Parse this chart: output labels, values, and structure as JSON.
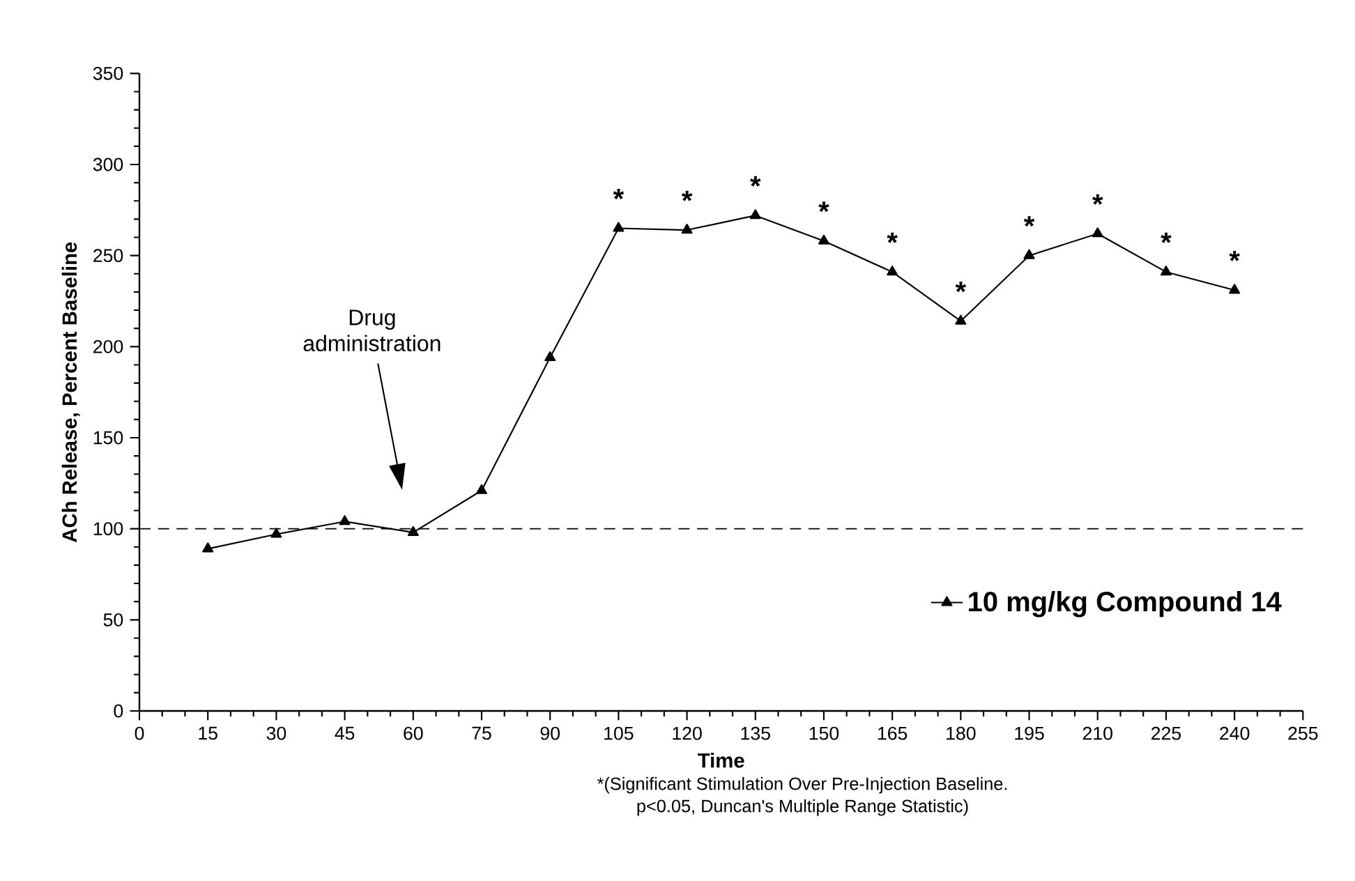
{
  "chart_data": {
    "type": "line",
    "xlabel": "Time",
    "ylabel": "ACh Release, Percent Baseline",
    "x": [
      15,
      30,
      45,
      60,
      75,
      90,
      105,
      120,
      135,
      150,
      165,
      180,
      195,
      210,
      225,
      240
    ],
    "series": [
      {
        "name": "10 mg/kg Compound 14",
        "color": "#000000",
        "values": [
          89,
          97,
          104,
          98,
          121,
          194,
          265,
          264,
          272,
          258,
          241,
          214,
          250,
          262,
          241,
          231
        ]
      }
    ],
    "xlim": [
      0,
      255
    ],
    "xticks": [
      0,
      15,
      30,
      45,
      60,
      75,
      90,
      105,
      120,
      135,
      150,
      165,
      180,
      195,
      210,
      225,
      240,
      255
    ],
    "ylim": [
      0,
      350
    ],
    "yticks": [
      0,
      50,
      100,
      150,
      200,
      250,
      300,
      350
    ],
    "ref_lines": [
      {
        "axis": "y",
        "value": 100,
        "line_style": "dashed",
        "color": "#000000"
      }
    ],
    "annotations": [
      "Drug administration",
      {
        "text": "*",
        "x": 105,
        "y": 265
      },
      {
        "text": "*",
        "x": 120,
        "y": 264
      },
      {
        "text": "*",
        "x": 135,
        "y": 272
      },
      {
        "text": "*",
        "x": 150,
        "y": 258
      },
      {
        "text": "*",
        "x": 165,
        "y": 241
      },
      {
        "text": "*",
        "x": 180,
        "y": 214
      },
      {
        "text": "*",
        "x": 195,
        "y": 250
      },
      {
        "text": "*",
        "x": 210,
        "y": 262
      },
      {
        "text": "*",
        "x": 225,
        "y": 241
      },
      {
        "text": "*",
        "x": 240,
        "y": 231
      },
      "*(Significant Stimulation Over Pre-Injection Baseline.",
      "p<0.05, Duncan's Multiple Range Statistic)"
    ],
    "legend": "right",
    "marker": "triangle",
    "line_style": "solid",
    "grid": false
  }
}
